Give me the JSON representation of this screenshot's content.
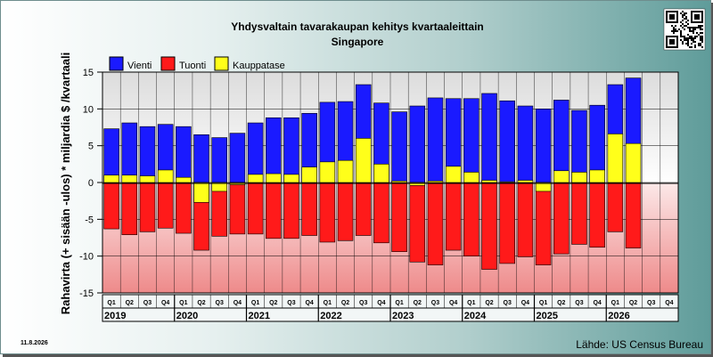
{
  "chart_data": {
    "type": "bar",
    "title": "Yhdysvaltain tavarakaupan kehitys kvartaaleittain",
    "subtitle": "Singapore",
    "ylabel": "Rahavirta (+ sisään -ulos)  * miljardia $ /kvartaali",
    "ylim": [
      -15,
      15
    ],
    "yticks": [
      -15,
      -10,
      -5,
      0,
      5,
      10,
      15
    ],
    "grid": true,
    "legend_position": "top-left",
    "quarter_labels": [
      "Q1",
      "Q2",
      "Q3",
      "Q4",
      "Q1",
      "Q2",
      "Q3",
      "Q4",
      "Q1",
      "Q2",
      "Q3",
      "Q4",
      "Q1",
      "Q2",
      "Q3",
      "Q4",
      "Q1",
      "Q2",
      "Q3",
      "Q4",
      "Q1",
      "Q2",
      "Q3",
      "Q4",
      "Q1",
      "Q2",
      "Q3",
      "Q4",
      "Q1",
      "Q2",
      "Q3",
      "Q4"
    ],
    "years": [
      "2019",
      "2020",
      "2021",
      "2022",
      "2023",
      "2024",
      "2025",
      "2026"
    ],
    "series": [
      {
        "name": "Vienti",
        "color": "#1a1aff",
        "values": [
          7.3,
          8.1,
          7.6,
          7.9,
          7.6,
          6.5,
          6.1,
          6.7,
          8.1,
          8.8,
          8.8,
          9.4,
          10.9,
          11.0,
          13.3,
          10.8,
          9.6,
          10.4,
          11.5,
          11.4,
          11.4,
          12.1,
          11.1,
          10.4,
          10.0,
          11.2,
          9.8,
          10.5,
          13.3,
          14.2,
          null,
          null
        ]
      },
      {
        "name": "Tuonti",
        "color": "#ff1a1a",
        "values": [
          -6.3,
          -7.1,
          -6.7,
          -6.2,
          -6.9,
          -9.2,
          -7.3,
          -7.0,
          -7.0,
          -7.6,
          -7.6,
          -7.2,
          -8.1,
          -7.9,
          -7.2,
          -8.2,
          -9.4,
          -10.8,
          -11.2,
          -9.2,
          -10.0,
          -11.8,
          -11.0,
          -10.1,
          -11.2,
          -9.7,
          -8.4,
          -8.8,
          -6.7,
          -8.9,
          null,
          null
        ]
      },
      {
        "name": "Kauppatase",
        "color": "#ffff1a",
        "values": [
          1.0,
          1.0,
          0.9,
          1.7,
          0.7,
          -2.7,
          -1.2,
          -0.3,
          1.1,
          1.2,
          1.1,
          2.1,
          2.8,
          3.0,
          6.0,
          2.5,
          0.2,
          -0.4,
          0.2,
          2.2,
          1.4,
          0.3,
          0.1,
          0.3,
          -1.2,
          1.6,
          1.4,
          1.7,
          6.6,
          5.3,
          null,
          null
        ]
      }
    ]
  },
  "footer": {
    "date": "11.8.2026",
    "source": "Lähde: US Census Bureau"
  }
}
